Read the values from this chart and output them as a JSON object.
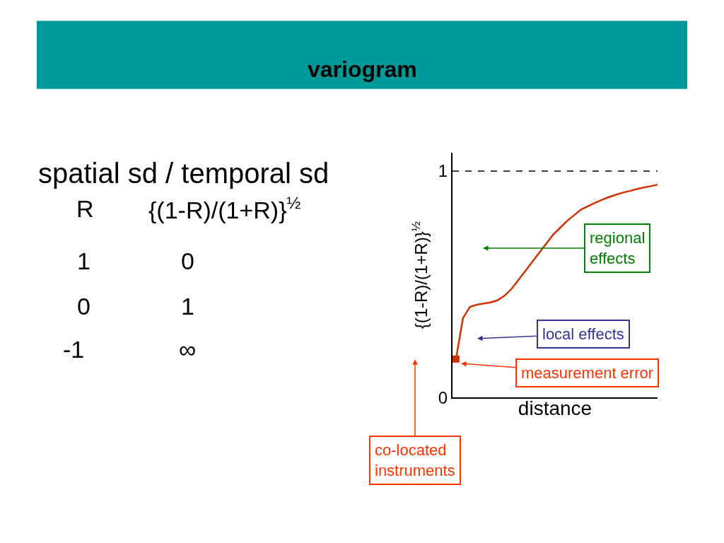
{
  "chart_data": {
    "type": "line",
    "title": "variogram",
    "xlabel": "distance",
    "ylabel": "{(1-R)/(1+R)}$^{½}$",
    "categories": [
      null,
      null,
      null,
      null,
      null,
      null,
      null,
      null,
      null,
      null,
      null,
      null,
      null,
      null,
      null,
      null,
      null,
      null,
      null,
      null,
      null,
      null,
      null,
      null,
      null,
      null,
      null,
      null,
      null,
      null
    ],
    "series": [
      {
        "color": "#cc3300",
        "values": [
          0.17,
          0.35,
          0.4,
          0.41,
          0.415,
          0.42,
          0.43,
          0.45,
          0.48,
          0.52,
          0.56,
          0.6,
          0.64,
          0.68,
          0.72,
          0.75,
          0.78,
          0.805,
          0.83,
          0.845,
          0.86,
          0.873,
          0.885,
          0.895,
          0.905,
          0.912,
          0.92,
          0.927,
          0.933,
          0.94
        ]
      },
      {
        "type": "scatter",
        "color": "#cc3300",
        "marker": "square",
        "values": [
          0.17,
          null,
          null,
          null,
          null,
          null,
          null,
          null,
          null,
          null,
          null,
          null,
          null,
          null,
          null,
          null,
          null,
          null,
          null,
          null,
          null,
          null,
          null,
          null,
          null,
          null,
          null,
          null,
          null,
          null
        ]
      }
    ],
    "ylim": [
      0,
      1.08
    ],
    "yticks": [
      0,
      1
    ],
    "tick_labels": "y",
    "ref_lines": [
      {
        "axis": "y",
        "value": 1,
        "color": "#000000",
        "line_style": "dashed"
      }
    ],
    "annotations": [
      "spatial sd / temporal sd",
      "R",
      "{(1-R)/(1+R)}$^{½}$",
      "1",
      "0",
      "0",
      "1",
      "-1",
      "∞",
      "regional effects",
      "local effects",
      "measurement error",
      "co-located instruments"
    ]
  }
}
